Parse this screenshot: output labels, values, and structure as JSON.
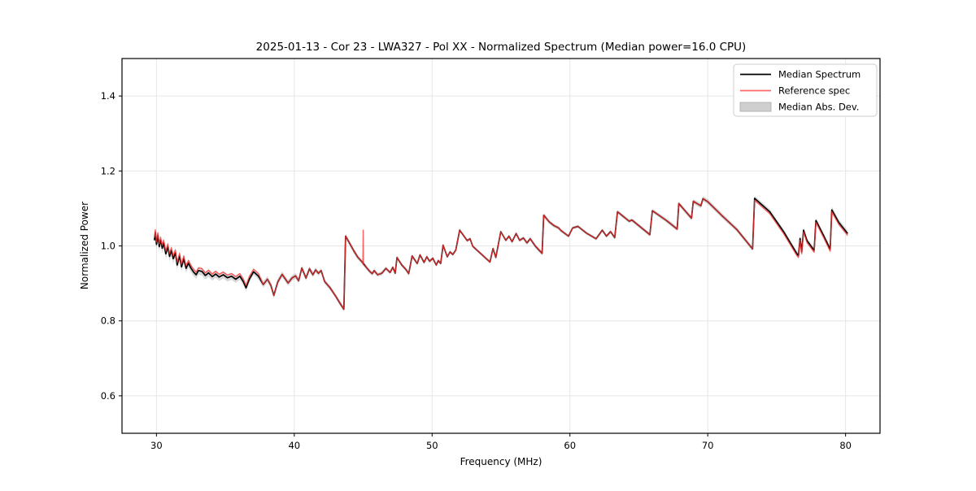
{
  "figure": {
    "background": "#ffffff"
  },
  "chart_data": {
    "type": "line",
    "title": "2025-01-13 - Cor 23 - LWA327 - Pol XX - Normalized Spectrum (Median power=16.0 CPU)",
    "xlabel": "Frequency (MHz)",
    "ylabel": "Normalized Power",
    "xlim": [
      27.5,
      82.5
    ],
    "ylim": [
      0.5,
      1.5
    ],
    "xticks": [
      30,
      40,
      50,
      60,
      70,
      80
    ],
    "yticks": [
      0.6,
      0.8,
      1.0,
      1.2,
      1.4
    ],
    "grid": true,
    "grid_color": "#e6e6e6",
    "legend": {
      "position": "upper right",
      "entries": [
        {
          "label": "Median Spectrum",
          "color": "#000000",
          "type": "line"
        },
        {
          "label": "Reference spec",
          "color": "#ff3333",
          "type": "line"
        },
        {
          "label": "Median Abs. Dev.",
          "color": "#cfcfcf",
          "type": "patch"
        }
      ]
    },
    "series": [
      {
        "name": "Median Spectrum",
        "color": "#000000",
        "points": [
          [
            29.85,
            1.015
          ],
          [
            29.92,
            1.036
          ],
          [
            30.0,
            1.004
          ],
          [
            30.1,
            1.028
          ],
          [
            30.2,
            0.998
          ],
          [
            30.3,
            1.016
          ],
          [
            30.42,
            0.994
          ],
          [
            30.52,
            1.008
          ],
          [
            30.68,
            0.979
          ],
          [
            30.82,
            0.998
          ],
          [
            30.95,
            0.972
          ],
          [
            31.08,
            0.988
          ],
          [
            31.22,
            0.966
          ],
          [
            31.38,
            0.982
          ],
          [
            31.5,
            0.949
          ],
          [
            31.68,
            0.973
          ],
          [
            31.82,
            0.944
          ],
          [
            31.98,
            0.966
          ],
          [
            32.15,
            0.94
          ],
          [
            32.32,
            0.954
          ],
          [
            32.5,
            0.941
          ],
          [
            32.7,
            0.93
          ],
          [
            32.88,
            0.923
          ],
          [
            33.05,
            0.934
          ],
          [
            33.3,
            0.932
          ],
          [
            33.55,
            0.921
          ],
          [
            33.78,
            0.928
          ],
          [
            34.05,
            0.918
          ],
          [
            34.3,
            0.925
          ],
          [
            34.55,
            0.917
          ],
          [
            34.85,
            0.923
          ],
          [
            35.15,
            0.915
          ],
          [
            35.45,
            0.919
          ],
          [
            35.75,
            0.911
          ],
          [
            36.05,
            0.919
          ],
          [
            36.3,
            0.905
          ],
          [
            36.5,
            0.888
          ],
          [
            36.75,
            0.912
          ],
          [
            37.05,
            0.931
          ],
          [
            37.4,
            0.919
          ],
          [
            37.75,
            0.897
          ],
          [
            38.05,
            0.911
          ],
          [
            38.3,
            0.895
          ],
          [
            38.52,
            0.868
          ],
          [
            38.8,
            0.904
          ],
          [
            39.12,
            0.924
          ],
          [
            39.35,
            0.912
          ],
          [
            39.55,
            0.901
          ],
          [
            39.85,
            0.915
          ],
          [
            40.1,
            0.92
          ],
          [
            40.32,
            0.907
          ],
          [
            40.55,
            0.941
          ],
          [
            40.85,
            0.914
          ],
          [
            41.1,
            0.939
          ],
          [
            41.35,
            0.923
          ],
          [
            41.55,
            0.936
          ],
          [
            41.75,
            0.927
          ],
          [
            41.95,
            0.934
          ],
          [
            42.2,
            0.905
          ],
          [
            42.6,
            0.888
          ],
          [
            43.0,
            0.866
          ],
          [
            43.35,
            0.845
          ],
          [
            43.6,
            0.831
          ],
          [
            43.72,
            1.026
          ],
          [
            44.0,
            1.008
          ],
          [
            44.3,
            0.988
          ],
          [
            44.6,
            0.97
          ],
          [
            44.95,
            0.956
          ],
          [
            45.2,
            0.944
          ],
          [
            45.5,
            0.931
          ],
          [
            45.65,
            0.926
          ],
          [
            45.8,
            0.934
          ],
          [
            46.05,
            0.923
          ],
          [
            46.35,
            0.927
          ],
          [
            46.65,
            0.94
          ],
          [
            46.95,
            0.929
          ],
          [
            47.15,
            0.943
          ],
          [
            47.32,
            0.927
          ],
          [
            47.45,
            0.969
          ],
          [
            47.8,
            0.949
          ],
          [
            48.1,
            0.937
          ],
          [
            48.3,
            0.926
          ],
          [
            48.55,
            0.973
          ],
          [
            48.92,
            0.953
          ],
          [
            49.12,
            0.976
          ],
          [
            49.42,
            0.956
          ],
          [
            49.62,
            0.971
          ],
          [
            49.82,
            0.959
          ],
          [
            50.05,
            0.967
          ],
          [
            50.3,
            0.949
          ],
          [
            50.45,
            0.961
          ],
          [
            50.62,
            0.953
          ],
          [
            50.8,
            1.002
          ],
          [
            51.1,
            0.971
          ],
          [
            51.3,
            0.984
          ],
          [
            51.5,
            0.977
          ],
          [
            51.72,
            0.989
          ],
          [
            52.0,
            1.042
          ],
          [
            52.3,
            1.027
          ],
          [
            52.55,
            1.014
          ],
          [
            52.75,
            1.019
          ],
          [
            52.95,
            0.999
          ],
          [
            53.25,
            0.989
          ],
          [
            53.55,
            0.979
          ],
          [
            53.9,
            0.967
          ],
          [
            54.2,
            0.957
          ],
          [
            54.42,
            0.993
          ],
          [
            54.62,
            0.969
          ],
          [
            54.98,
            1.038
          ],
          [
            55.35,
            1.015
          ],
          [
            55.58,
            1.026
          ],
          [
            55.8,
            1.011
          ],
          [
            56.1,
            1.033
          ],
          [
            56.35,
            1.015
          ],
          [
            56.62,
            1.021
          ],
          [
            56.88,
            1.008
          ],
          [
            57.12,
            1.019
          ],
          [
            57.5,
            0.999
          ],
          [
            57.98,
            0.98
          ],
          [
            58.1,
            1.082
          ],
          [
            58.5,
            1.064
          ],
          [
            58.85,
            1.054
          ],
          [
            59.18,
            1.048
          ],
          [
            59.35,
            1.041
          ],
          [
            59.9,
            1.026
          ],
          [
            60.2,
            1.048
          ],
          [
            60.58,
            1.052
          ],
          [
            61.2,
            1.034
          ],
          [
            61.9,
            1.019
          ],
          [
            62.35,
            1.042
          ],
          [
            62.65,
            1.026
          ],
          [
            62.95,
            1.038
          ],
          [
            63.25,
            1.022
          ],
          [
            63.45,
            1.091
          ],
          [
            64.3,
            1.066
          ],
          [
            64.5,
            1.069
          ],
          [
            65.8,
            1.03
          ],
          [
            65.98,
            1.094
          ],
          [
            67.0,
            1.068
          ],
          [
            67.78,
            1.045
          ],
          [
            67.9,
            1.113
          ],
          [
            68.82,
            1.074
          ],
          [
            68.95,
            1.119
          ],
          [
            69.5,
            1.107
          ],
          [
            69.65,
            1.126
          ],
          [
            70.0,
            1.118
          ],
          [
            71.0,
            1.082
          ],
          [
            72.1,
            1.044
          ],
          [
            73.25,
            0.992
          ],
          [
            73.4,
            1.127
          ],
          [
            74.5,
            1.091
          ],
          [
            75.5,
            1.038
          ],
          [
            76.45,
            0.98
          ],
          [
            76.58,
            0.974
          ],
          [
            76.7,
            1.02
          ],
          [
            76.82,
            0.984
          ],
          [
            76.95,
            1.042
          ],
          [
            77.2,
            1.014
          ],
          [
            77.72,
            0.988
          ],
          [
            77.85,
            1.068
          ],
          [
            78.4,
            1.028
          ],
          [
            78.88,
            0.991
          ],
          [
            79.0,
            1.096
          ],
          [
            79.5,
            1.063
          ],
          [
            80.15,
            1.033
          ]
        ]
      },
      {
        "name": "Reference spec",
        "color": "#ff3333",
        "derived_from": "Median Spectrum",
        "offset_segments": [
          {
            "from": 29.0,
            "to": 37.6,
            "dy": 0.007
          },
          {
            "from": 73.3,
            "to": 80.3,
            "dy": -0.005
          }
        ],
        "spike": {
          "freq": 45.0,
          "peak": 1.042
        }
      },
      {
        "name": "Median Abs. Dev.",
        "color": "#c0c0c0",
        "halfwidth_anchors": [
          [
            29.85,
            0.014
          ],
          [
            31,
            0.013
          ],
          [
            33,
            0.011
          ],
          [
            35,
            0.01
          ],
          [
            37,
            0.009
          ],
          [
            39,
            0.008
          ],
          [
            41,
            0.007
          ],
          [
            43,
            0.006
          ],
          [
            43.8,
            0.007
          ],
          [
            45,
            0.006
          ],
          [
            47,
            0.005
          ],
          [
            49,
            0.005
          ],
          [
            51,
            0.004
          ],
          [
            53,
            0.004
          ],
          [
            55,
            0.004
          ],
          [
            57,
            0.005
          ],
          [
            58.2,
            0.006
          ],
          [
            60,
            0.004
          ],
          [
            62,
            0.004
          ],
          [
            64,
            0.005
          ],
          [
            66,
            0.005
          ],
          [
            68,
            0.006
          ],
          [
            70,
            0.007
          ],
          [
            72,
            0.006
          ],
          [
            73.3,
            0.006
          ],
          [
            73.5,
            0.008
          ],
          [
            75,
            0.007
          ],
          [
            76.5,
            0.007
          ],
          [
            78,
            0.007
          ],
          [
            79.2,
            0.009
          ],
          [
            80.15,
            0.008
          ]
        ]
      }
    ]
  }
}
